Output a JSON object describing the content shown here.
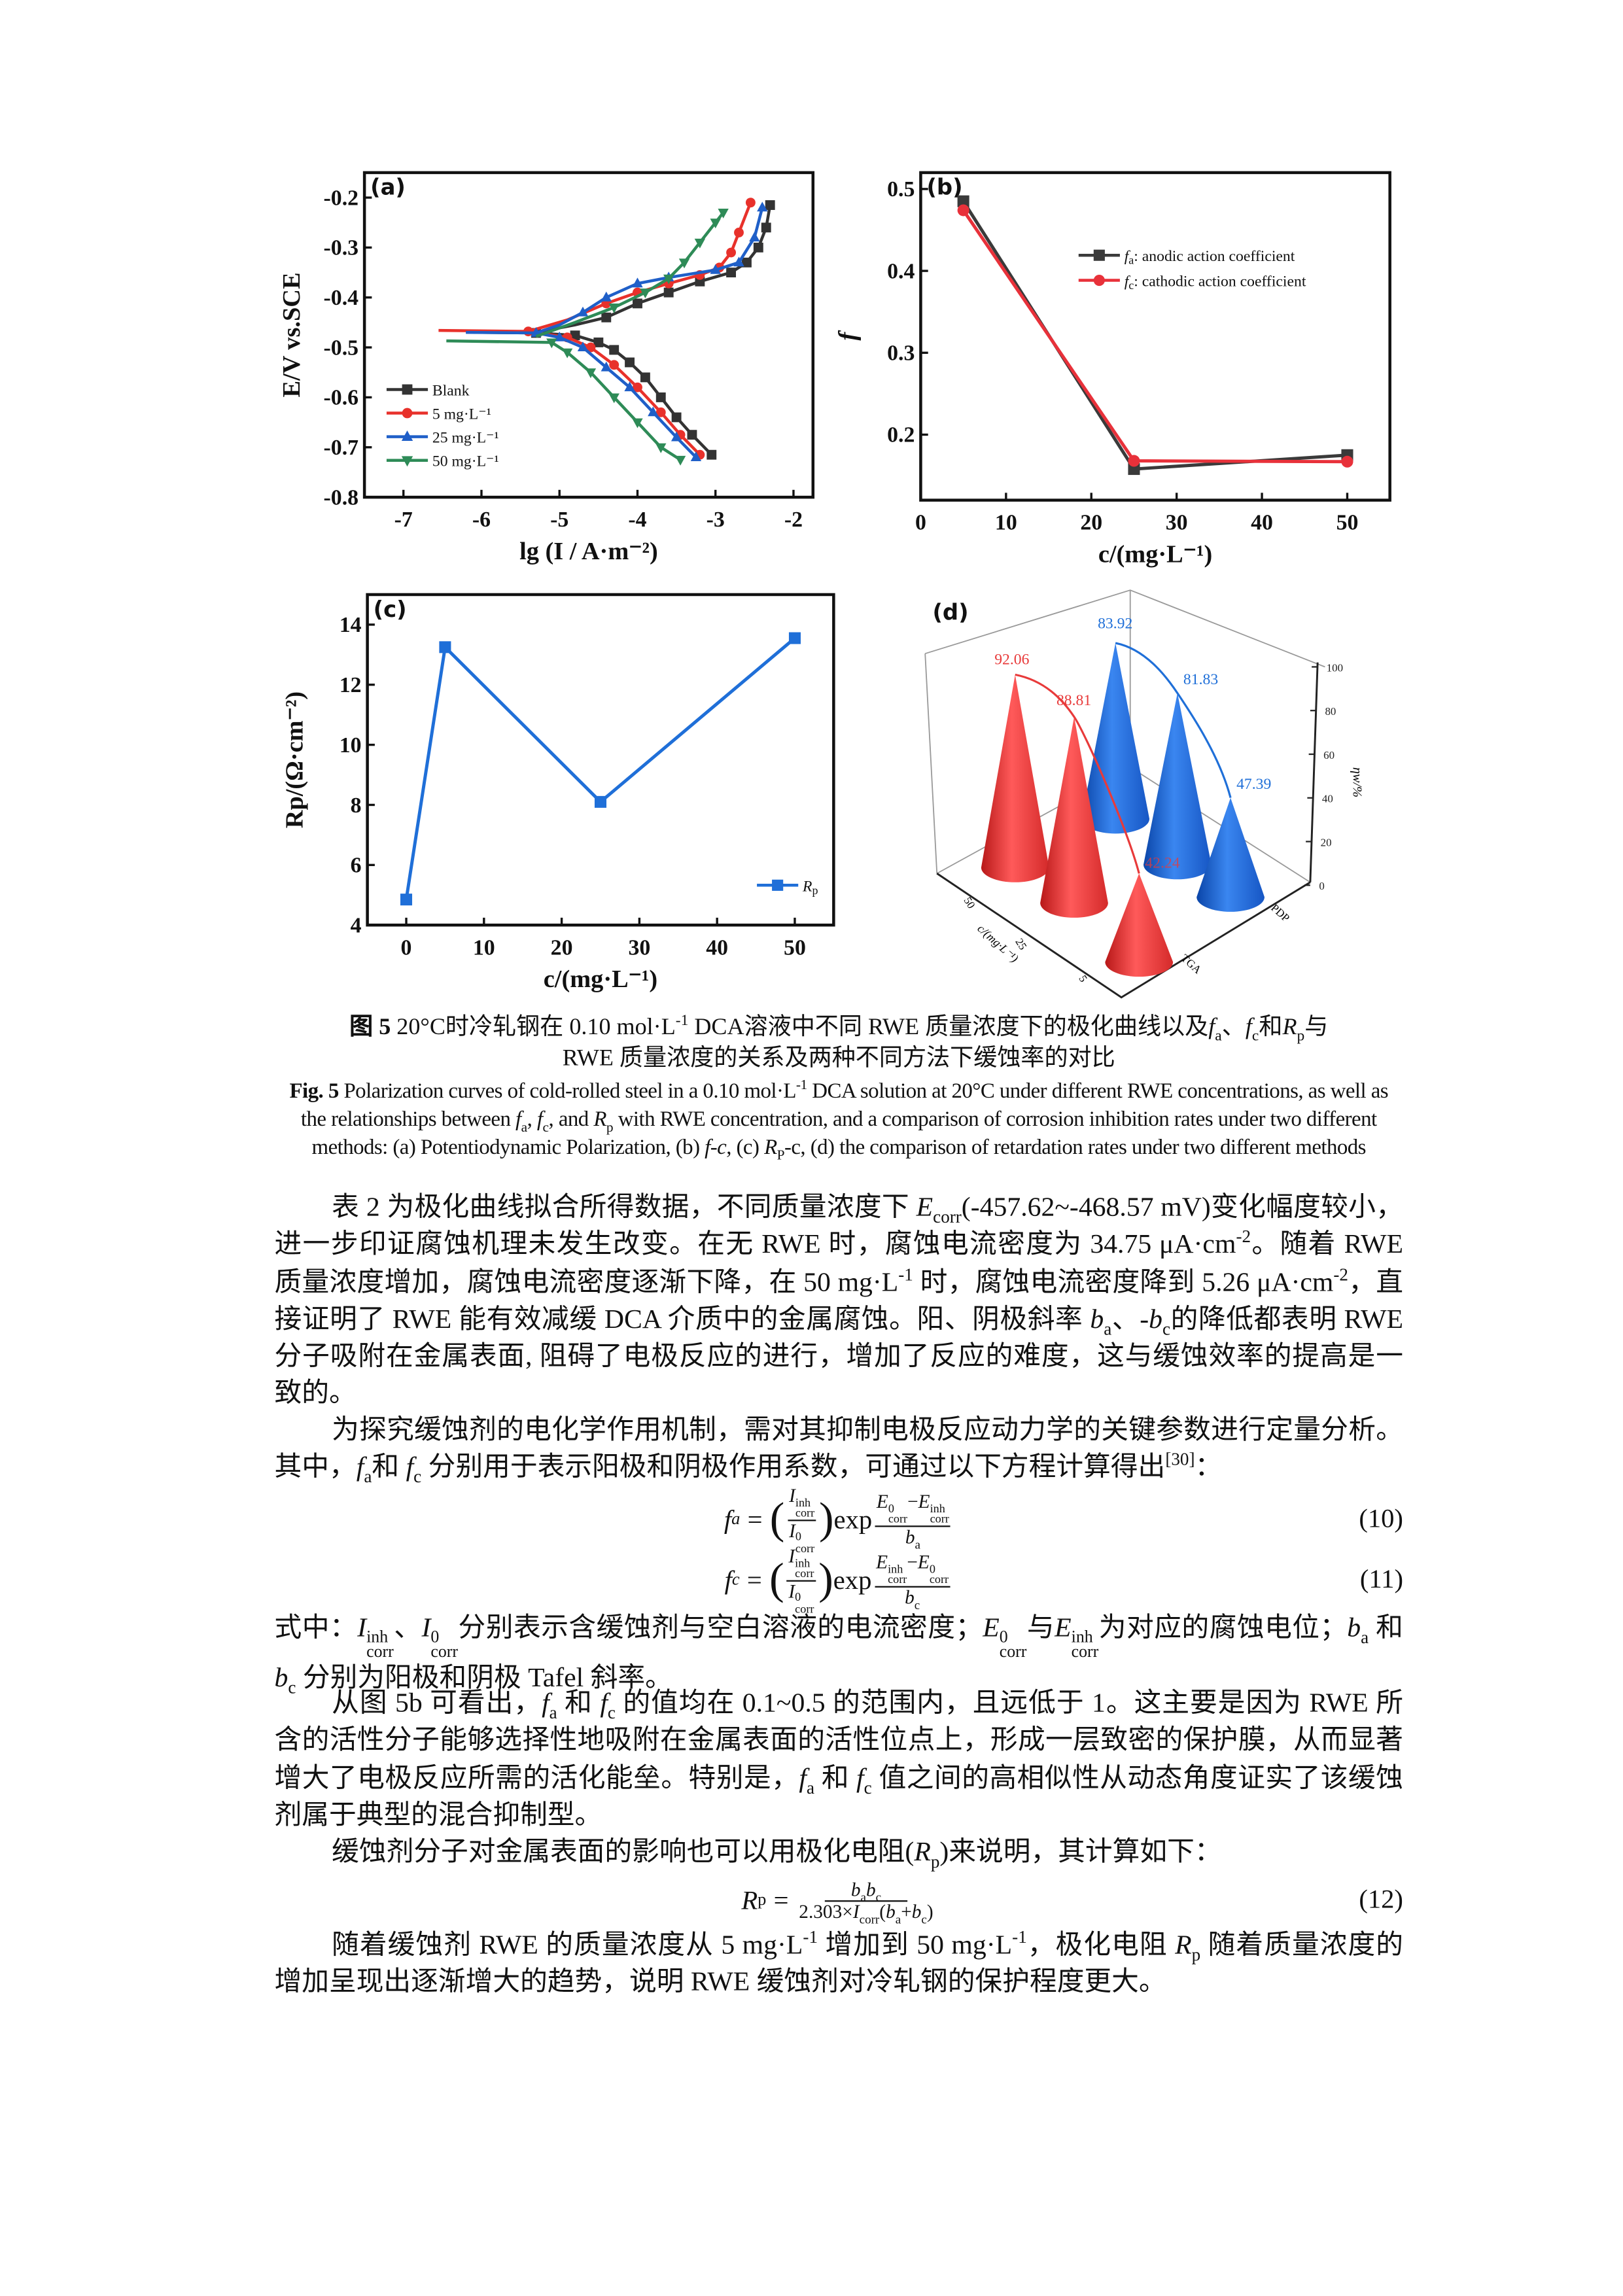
{
  "figure": {
    "chart_data": [
      {
        "panel": "(a)",
        "type": "line",
        "xlabel": "lg (I / A·m⁻²)",
        "ylabel": "E/V vs.SCE",
        "xlim": [
          -7.5,
          -1.75
        ],
        "ylim": [
          -0.8,
          -0.15
        ],
        "xticks": [
          -7,
          -6,
          -5,
          -4,
          -3,
          -2
        ],
        "yticks": [
          -0.2,
          -0.3,
          -0.4,
          -0.5,
          -0.6,
          -0.7,
          -0.8
        ],
        "legend_position": "bottom-left",
        "series": [
          {
            "name": "Blank",
            "color": "#333333",
            "marker": "square",
            "cathodic": [
              [
                -6.1,
                -0.47
              ],
              [
                -5.3,
                -0.471
              ],
              [
                -4.8,
                -0.476
              ],
              [
                -4.5,
                -0.49
              ],
              [
                -4.3,
                -0.505
              ],
              [
                -4.1,
                -0.53
              ],
              [
                -3.9,
                -0.56
              ],
              [
                -3.7,
                -0.6
              ],
              [
                -3.5,
                -0.64
              ],
              [
                -3.3,
                -0.675
              ],
              [
                -3.05,
                -0.715
              ]
            ],
            "anodic": [
              [
                -5.3,
                -0.47
              ],
              [
                -4.8,
                -0.455
              ],
              [
                -4.4,
                -0.44
              ],
              [
                -4.0,
                -0.412
              ],
              [
                -3.6,
                -0.39
              ],
              [
                -3.2,
                -0.368
              ],
              [
                -2.8,
                -0.35
              ],
              [
                -2.6,
                -0.33
              ],
              [
                -2.45,
                -0.3
              ],
              [
                -2.35,
                -0.26
              ],
              [
                -2.3,
                -0.215
              ]
            ]
          },
          {
            "name": "5   mg·L⁻¹",
            "color": "#e8312b",
            "marker": "circle",
            "cathodic": [
              [
                -6.55,
                -0.466
              ],
              [
                -5.4,
                -0.468
              ],
              [
                -4.9,
                -0.48
              ],
              [
                -4.6,
                -0.5
              ],
              [
                -4.3,
                -0.535
              ],
              [
                -4.0,
                -0.58
              ],
              [
                -3.7,
                -0.63
              ],
              [
                -3.45,
                -0.675
              ],
              [
                -3.2,
                -0.715
              ]
            ],
            "anodic": [
              [
                -5.4,
                -0.468
              ],
              [
                -4.9,
                -0.445
              ],
              [
                -4.4,
                -0.412
              ],
              [
                -4.0,
                -0.39
              ],
              [
                -3.6,
                -0.372
              ],
              [
                -3.2,
                -0.355
              ],
              [
                -2.95,
                -0.34
              ],
              [
                -2.8,
                -0.31
              ],
              [
                -2.7,
                -0.27
              ],
              [
                -2.55,
                -0.21
              ]
            ]
          },
          {
            "name": "25 mg·L⁻¹",
            "color": "#1f5fc8",
            "marker": "triangle-up",
            "cathodic": [
              [
                -6.2,
                -0.47
              ],
              [
                -5.3,
                -0.471
              ],
              [
                -5.0,
                -0.48
              ],
              [
                -4.7,
                -0.5
              ],
              [
                -4.4,
                -0.54
              ],
              [
                -4.1,
                -0.58
              ],
              [
                -3.8,
                -0.63
              ],
              [
                -3.5,
                -0.68
              ],
              [
                -3.25,
                -0.72
              ]
            ],
            "anodic": [
              [
                -5.3,
                -0.471
              ],
              [
                -5.0,
                -0.455
              ],
              [
                -4.7,
                -0.43
              ],
              [
                -4.4,
                -0.4
              ],
              [
                -4.0,
                -0.372
              ],
              [
                -3.6,
                -0.36
              ],
              [
                -3.0,
                -0.345
              ],
              [
                -2.7,
                -0.33
              ],
              [
                -2.5,
                -0.28
              ],
              [
                -2.4,
                -0.22
              ]
            ]
          },
          {
            "name": "50 mg·L⁻¹",
            "color": "#2e8b57",
            "marker": "triangle-down",
            "cathodic": [
              [
                -6.45,
                -0.487
              ],
              [
                -5.1,
                -0.49
              ],
              [
                -4.9,
                -0.51
              ],
              [
                -4.6,
                -0.55
              ],
              [
                -4.3,
                -0.6
              ],
              [
                -4.0,
                -0.65
              ],
              [
                -3.7,
                -0.7
              ],
              [
                -3.45,
                -0.725
              ]
            ],
            "anodic": [
              [
                -5.3,
                -0.478
              ],
              [
                -4.8,
                -0.45
              ],
              [
                -4.3,
                -0.42
              ],
              [
                -3.9,
                -0.39
              ],
              [
                -3.6,
                -0.362
              ],
              [
                -3.4,
                -0.33
              ],
              [
                -3.2,
                -0.29
              ],
              [
                -3.0,
                -0.25
              ],
              [
                -2.9,
                -0.23
              ]
            ]
          }
        ]
      },
      {
        "panel": "(b)",
        "type": "line",
        "xlabel": "c/(mg·L⁻¹)",
        "ylabel": "f",
        "xlim": [
          0,
          55
        ],
        "ylim": [
          0.12,
          0.52
        ],
        "xticks": [
          0,
          10,
          20,
          30,
          40,
          50
        ],
        "yticks": [
          0.2,
          0.3,
          0.4,
          0.5
        ],
        "legend_position": "top-right",
        "series": [
          {
            "name_symbol": "f",
            "name_sub": "a",
            "name_rest": ": anodic action coefficient",
            "color": "#3a3a3a",
            "marker": "square",
            "points": [
              [
                5,
                0.485
              ],
              [
                25,
                0.158
              ],
              [
                50,
                0.175
              ]
            ]
          },
          {
            "name_symbol": "f",
            "name_sub": "c",
            "name_rest": ": cathodic action coefficient",
            "color": "#e8313a",
            "marker": "circle",
            "points": [
              [
                5,
                0.474
              ],
              [
                25,
                0.168
              ],
              [
                50,
                0.167
              ]
            ]
          }
        ]
      },
      {
        "panel": "(c)",
        "type": "line",
        "xlabel": "c/(mg·L⁻¹)",
        "ylabel": "Rp/(Ω·cm⁻²)",
        "xlim": [
          -5,
          55
        ],
        "ylim": [
          4,
          15
        ],
        "xticks": [
          0,
          10,
          20,
          30,
          40,
          50
        ],
        "yticks": [
          4,
          6,
          8,
          10,
          12,
          14
        ],
        "legend_position": "bottom-right",
        "series": [
          {
            "name_symbol": "R",
            "name_sub": "p",
            "color": "#1f6fd8",
            "marker": "square",
            "points": [
              [
                0,
                4.85
              ],
              [
                5,
                13.25
              ],
              [
                25,
                8.1
              ],
              [
                50,
                13.55
              ]
            ]
          }
        ]
      },
      {
        "panel": "(d)",
        "type": "bar3d-cone",
        "zlabel": "ηw/%",
        "zlim": [
          0,
          100
        ],
        "zticks": [
          0,
          20,
          40,
          60,
          80,
          100
        ],
        "c_label": "c/(mg·L⁻¹)",
        "c_ticks": [
          "50",
          "25",
          "5"
        ],
        "method_ticks": [
          "PDP",
          "TGA"
        ],
        "series": [
          {
            "name": "TGA",
            "color": "#e83a3a",
            "values": [
              {
                "c": "50",
                "v": 92.06,
                "label": "92.06"
              },
              {
                "c": "25",
                "v": 88.81,
                "label": "88.81"
              },
              {
                "c": "5",
                "v": 42.24,
                "label": "42.24"
              }
            ]
          },
          {
            "name": "PDP",
            "color": "#1f6fd8",
            "values": [
              {
                "c": "50",
                "v": 83.92,
                "label": "83.92"
              },
              {
                "c": "25",
                "v": 81.83,
                "label": "81.83"
              },
              {
                "c": "5",
                "v": 47.39,
                "label": "47.39"
              }
            ]
          }
        ]
      }
    ]
  },
  "caption_cn": {
    "line1": [
      [
        "图 5",
        "b"
      ],
      " 20°C时冷轧钢在 0.10 mol·L",
      [
        "-1",
        "sup"
      ],
      " DCA溶液中不同 RWE 质量浓度下的极化曲线以及",
      [
        "f",
        "i"
      ],
      [
        "a",
        "sub"
      ],
      "、",
      [
        "f",
        "i"
      ],
      [
        "c",
        "sub"
      ],
      "和",
      [
        "R",
        "i"
      ],
      [
        "p",
        "sub"
      ],
      "与"
    ],
    "line2": [
      "RWE 质量浓度的关系及两种不同方法下缓蚀率的对比"
    ]
  },
  "caption_en": [
    [
      "Fig. 5",
      "b"
    ],
    " Polarization curves of cold-rolled steel in a 0.10 mol·L",
    [
      "-1",
      "sup"
    ],
    " DCA solution at 20°C under different RWE concentrations, as well as the relationships between ",
    [
      "f",
      "i"
    ],
    [
      "a",
      "sub"
    ],
    ", ",
    [
      "f",
      "i"
    ],
    [
      "c",
      "sub"
    ],
    ", and ",
    [
      "R",
      "i"
    ],
    [
      "p",
      "sub"
    ],
    " with RWE concentration, and a comparison of corrosion inhibition rates under two different methods: (a) Potentiodynamic Polarization, (b) ",
    [
      "f-c",
      "i"
    ],
    ", (c) ",
    [
      "R",
      "i"
    ],
    [
      "P",
      "sub"
    ],
    "-c, (d) the comparison of retardation rates under two different methods"
  ],
  "body": {
    "p1": [
      "表 2 为极化曲线拟合所得数据，不同质量浓度下 ",
      [
        "E",
        "i"
      ],
      [
        "corr",
        "sub"
      ],
      "(-457.62~-468.57 mV)变化幅度较小，进一步印证腐蚀机理未发生改变。在无 RWE 时，腐蚀电流密度为 34.75 μA·cm",
      [
        "-2",
        "sup"
      ],
      "。随着 RWE 质量浓度增加，腐蚀电流密度逐渐下降，在 50 mg·L",
      [
        "-1",
        "sup"
      ],
      " 时，腐蚀电流密度降到 5.26 μA·cm",
      [
        "-2",
        "sup"
      ],
      "，直接证明了 RWE 能有效减缓 DCA 介质中的金属腐蚀。阳、阴极斜率 ",
      [
        "b",
        "i"
      ],
      [
        "a",
        "sub"
      ],
      "、-",
      [
        "b",
        "i"
      ],
      [
        "c",
        "sub"
      ],
      "的降低都表明 RWE 分子吸附在金属表面, 阻碍了电极反应的进行，增加了反应的难度，这与缓蚀效率的提高是一致的。"
    ],
    "p2": [
      "为探究缓蚀剂的电化学作用机制，需对其抑制电极反应动力学的关键参数进行定量分析。其中，",
      [
        "f",
        "i"
      ],
      [
        "a",
        "sub"
      ],
      "和 ",
      [
        "f",
        "i"
      ],
      [
        "c",
        "sub"
      ],
      " 分别用于表示阳极和阴极作用系数，可通过以下方程计算得出",
      [
        "[30]",
        "sup"
      ],
      "："
    ],
    "p_where": [
      "式中：",
      [
        "I",
        "i"
      ],
      [
        "inh",
        "ss",
        "corr"
      ],
      "、",
      [
        "I",
        "i"
      ],
      [
        "0",
        "ss",
        "corr"
      ],
      "分别表示含缓蚀剂与空白溶液的电流密度；",
      [
        "E",
        "i"
      ],
      [
        "0",
        "ss",
        "corr"
      ],
      "与",
      [
        "E",
        "i"
      ],
      [
        "inh",
        "ss",
        "corr"
      ],
      "为对应的腐蚀电位；",
      [
        "b",
        "i"
      ],
      [
        "a",
        "sub"
      ],
      " 和 ",
      [
        "b",
        "i"
      ],
      [
        "c",
        "sub"
      ],
      " 分别为阳极和阴极 Tafel 斜率。"
    ],
    "p3": [
      "从图 5b 可看出，",
      [
        "f",
        "i"
      ],
      [
        "a",
        "sub"
      ],
      " 和 ",
      [
        "f",
        "i"
      ],
      [
        "c",
        "sub"
      ],
      " 的值均在 0.1~0.5 的范围内，且远低于 1。这主要是因为 RWE 所含的活性分子能够选择性地吸附在金属表面的活性位点上，形成一层致密的保护膜，从而显著增大了电极反应所需的活化能垒。特别是，",
      [
        "f",
        "i"
      ],
      [
        "a",
        "sub"
      ],
      " 和 ",
      [
        "f",
        "i"
      ],
      [
        "c",
        "sub"
      ],
      " 值之间的高相似性从动态角度证实了该缓蚀剂属于典型的混合抑制型。"
    ],
    "p4": [
      "缓蚀剂分子对金属表面的影响也可以用极化电阻(",
      [
        "R",
        "i"
      ],
      [
        "p",
        "sub"
      ],
      ")来说明，其计算如下："
    ],
    "p5": [
      "随着缓蚀剂 RWE 的质量浓度从 5 mg·L",
      [
        "-1",
        "sup"
      ],
      " 增加到 50 mg·L",
      [
        "-1",
        "sup"
      ],
      "，极化电阻 ",
      [
        "R",
        "i"
      ],
      [
        "p",
        "sub"
      ],
      " 随着质量浓度的增加呈现出逐渐增大的趋势，说明 RWE 缓蚀剂对冷轧钢的保护程度更大。"
    ]
  },
  "equations": {
    "sym": {
      "I": "I",
      "E": "E",
      "inh": "inh",
      "corr": "corr",
      "zero": "0",
      "exp": "exp",
      "eq": "=",
      "minus": "−",
      "b": "b",
      "lp": "(",
      "rp": ")",
      "a": "a",
      "c": "c",
      "f": "f",
      "R": "R",
      "p": "p",
      "times": "2.303×",
      "plus": "+"
    },
    "eq10": {
      "label": "(10)"
    },
    "eq11": {
      "label": "(11)"
    },
    "eq12": {
      "label": "(12)"
    }
  }
}
